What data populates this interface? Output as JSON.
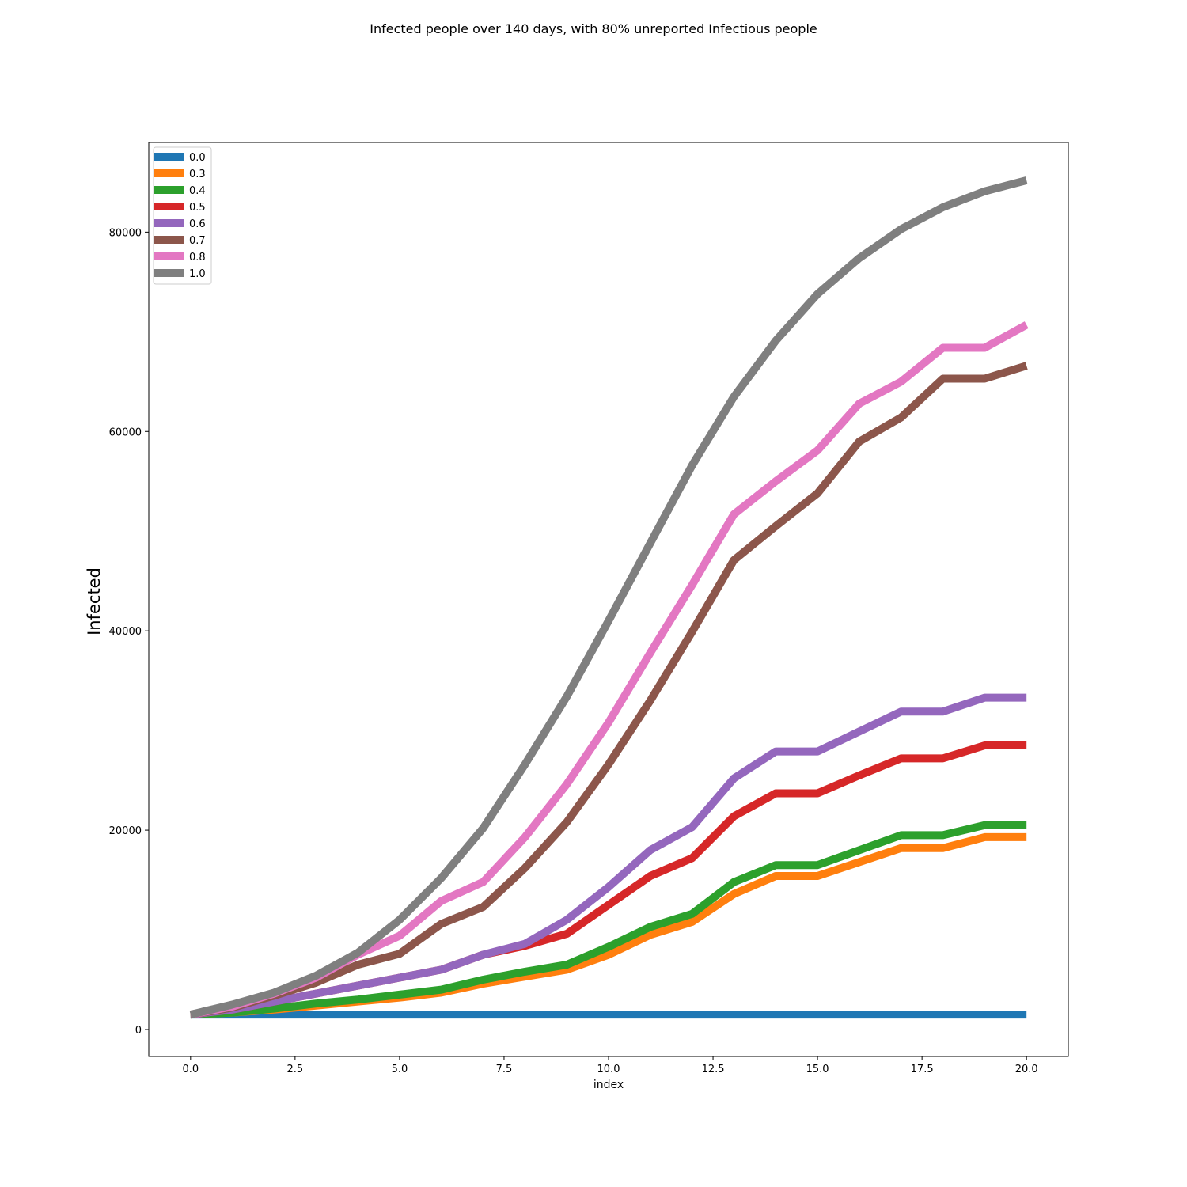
{
  "chart_data": {
    "type": "line",
    "title": "Infected people over 140 days, with 80% unreported Infectious people",
    "xlabel": "index",
    "ylabel": "Infected",
    "xlim": [
      -1,
      21
    ],
    "ylim": [
      -2700,
      89000
    ],
    "xticks": [
      0.0,
      2.5,
      5.0,
      7.5,
      10.0,
      12.5,
      15.0,
      17.5,
      20.0
    ],
    "xtick_labels": [
      "0.0",
      "2.5",
      "5.0",
      "7.5",
      "10.0",
      "12.5",
      "15.0",
      "17.5",
      "20.0"
    ],
    "yticks": [
      0,
      20000,
      40000,
      60000,
      80000
    ],
    "ytick_labels": [
      "0",
      "20000",
      "40000",
      "60000",
      "80000"
    ],
    "grid": false,
    "legend_position": "top-left",
    "x": [
      0,
      1,
      2,
      3,
      4,
      5,
      6,
      7,
      8,
      9,
      10,
      11,
      12,
      13,
      14,
      15,
      16,
      17,
      18,
      19,
      20
    ],
    "series": [
      {
        "name": "0.0",
        "color": "#1f77b4",
        "values": [
          1500,
          1500,
          1500,
          1500,
          1500,
          1500,
          1500,
          1500,
          1500,
          1500,
          1500,
          1500,
          1500,
          1500,
          1500,
          1500,
          1500,
          1500,
          1500,
          1500,
          1500
        ]
      },
      {
        "name": "0.3",
        "color": "#ff7f0e",
        "values": [
          1500,
          1700,
          2000,
          2400,
          2800,
          3200,
          3700,
          4600,
          5300,
          6000,
          7500,
          9500,
          10800,
          13600,
          15400,
          15400,
          16800,
          18200,
          18200,
          19300,
          19300
        ]
      },
      {
        "name": "0.4",
        "color": "#2ca02c",
        "values": [
          1500,
          1700,
          2100,
          2600,
          3000,
          3500,
          4000,
          5000,
          5800,
          6500,
          8300,
          10300,
          11600,
          14800,
          16500,
          16500,
          18000,
          19500,
          19500,
          20500,
          20500
        ]
      },
      {
        "name": "0.5",
        "color": "#d62728",
        "values": [
          1500,
          2000,
          2800,
          3600,
          4400,
          5200,
          6000,
          7500,
          8400,
          9600,
          12500,
          15400,
          17200,
          21400,
          23700,
          23700,
          25500,
          27200,
          27200,
          28500,
          28500
        ]
      },
      {
        "name": "0.6",
        "color": "#9467bd",
        "values": [
          1500,
          2000,
          2800,
          3600,
          4400,
          5200,
          6000,
          7500,
          8600,
          11000,
          14300,
          18000,
          20300,
          25200,
          27900,
          27900,
          29900,
          31900,
          31900,
          33300,
          33300
        ]
      },
      {
        "name": "0.7",
        "color": "#8c564b",
        "values": [
          1500,
          2200,
          3400,
          4700,
          6500,
          7600,
          10600,
          12300,
          16200,
          20800,
          26600,
          33000,
          39900,
          47100,
          50500,
          53800,
          59000,
          61400,
          65300,
          65300,
          66600
        ]
      },
      {
        "name": "0.8",
        "color": "#e377c2",
        "values": [
          1500,
          2300,
          3600,
          5200,
          7500,
          9400,
          12900,
          14800,
          19300,
          24600,
          30800,
          37800,
          44600,
          51700,
          55000,
          58100,
          62800,
          65000,
          68400,
          68400,
          70700
        ]
      },
      {
        "name": "1.0",
        "color": "#7f7f7f",
        "values": [
          1500,
          2500,
          3700,
          5400,
          7700,
          11000,
          15200,
          20200,
          26600,
          33400,
          41000,
          48800,
          56600,
          63500,
          69100,
          73800,
          77400,
          80300,
          82500,
          84100,
          85200
        ]
      }
    ]
  }
}
